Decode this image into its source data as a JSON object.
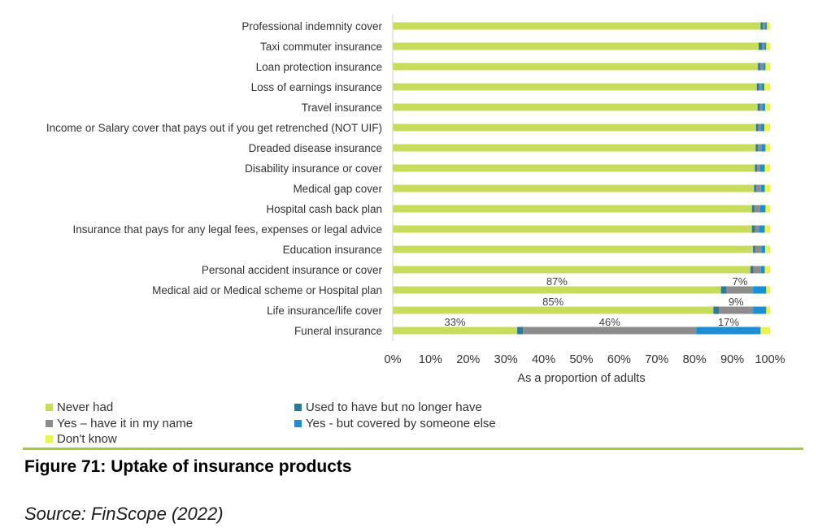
{
  "chart_data": {
    "type": "bar",
    "orientation": "horizontal",
    "stacked": true,
    "categories": [
      "Professional indemnity cover",
      "Taxi commuter insurance",
      "Loan protection insurance",
      "Loss of earnings insurance",
      "Travel insurance",
      "Income or Salary cover that pays out if you get retrenched (NOT UIF)",
      "Dreaded disease insurance",
      "Disability insurance or cover",
      "Medical gap cover",
      "Hospital cash back plan",
      "Insurance that pays for any legal fees, expenses or legal advice",
      "Education insurance",
      "Personal accident insurance or cover",
      "Medical aid or Medical scheme or Hospital plan",
      "Life insurance/life cover",
      "Funeral insurance"
    ],
    "series": [
      {
        "name": "Never had",
        "color": "#c8dc5c",
        "values": [
          97.5,
          97,
          96.8,
          96.5,
          96.7,
          96.3,
          96.2,
          96,
          95.8,
          95.2,
          95.2,
          95.5,
          94.8,
          87,
          85,
          33
        ]
      },
      {
        "name": "Used to have but no longer have",
        "color": "#2b7a98",
        "values": [
          0.6,
          1,
          0.6,
          0.6,
          0.6,
          0.6,
          0.6,
          0.6,
          0.6,
          0.6,
          0.8,
          0.6,
          0.8,
          1.5,
          1.5,
          1.5
        ]
      },
      {
        "name": "Yes – have it in my name",
        "color": "#8c8c8c",
        "values": [
          0.6,
          0.5,
          0.8,
          0.6,
          0.6,
          0.6,
          0.9,
          0.8,
          1.2,
          1.6,
          1.2,
          1.6,
          2,
          7,
          9,
          46
        ]
      },
      {
        "name": "Yes - but covered by someone else",
        "color": "#1b8ed6",
        "values": [
          0.5,
          0.5,
          0.6,
          0.8,
          0.8,
          1,
          1.1,
          1.2,
          1,
          1.4,
          1.4,
          1,
          1,
          3.5,
          3.5,
          17
        ]
      },
      {
        "name": "Don't know",
        "color": "#e9f54f",
        "values": [
          0.8,
          1,
          1.2,
          1.5,
          1.3,
          1.5,
          1.2,
          1.4,
          1.4,
          1.2,
          1.4,
          1.3,
          1.4,
          1,
          1,
          2.5
        ]
      }
    ],
    "data_labels": [
      {
        "category": "Medical aid or Medical scheme or Hospital plan",
        "series": "Never had",
        "text": "87%"
      },
      {
        "category": "Medical aid or Medical scheme or Hospital plan",
        "series": "Yes – have it in my name",
        "text": "7%"
      },
      {
        "category": "Life insurance/life cover",
        "series": "Never had",
        "text": "85%"
      },
      {
        "category": "Life insurance/life cover",
        "series": "Yes – have it in my name",
        "text": "9%"
      },
      {
        "category": "Funeral insurance",
        "series": "Never had",
        "text": "33%"
      },
      {
        "category": "Funeral insurance",
        "series": "Yes – have it in my name",
        "text": "46%"
      },
      {
        "category": "Funeral insurance",
        "series": "Yes - but covered by someone else",
        "text": "17%"
      }
    ],
    "x_ticks": [
      "0%",
      "10%",
      "20%",
      "30%",
      "40%",
      "50%",
      "60%",
      "70%",
      "80%",
      "90%",
      "100%"
    ],
    "xlabel": "As a proportion of adults",
    "ylabel": "",
    "xlim": [
      0,
      100
    ],
    "grid": false,
    "legend_position": "bottom-left"
  },
  "legend": {
    "never_had": "Never had",
    "used_to_have": "Used to have but no longer have",
    "have_in_name": "Yes – have it in my name",
    "covered_by_else": "Yes - but covered by someone else",
    "dont_know": "Don't know"
  },
  "colors": {
    "never_had": "#c8dc5c",
    "used_to_have": "#2b7a98",
    "have_in_name": "#8c8c8c",
    "covered_by_else": "#1b8ed6",
    "dont_know": "#e9f54f",
    "divider": "#a7c93a"
  },
  "caption": {
    "figure_title": "Figure 71: Uptake of insurance products",
    "source": "Source: FinScope (2022)"
  }
}
